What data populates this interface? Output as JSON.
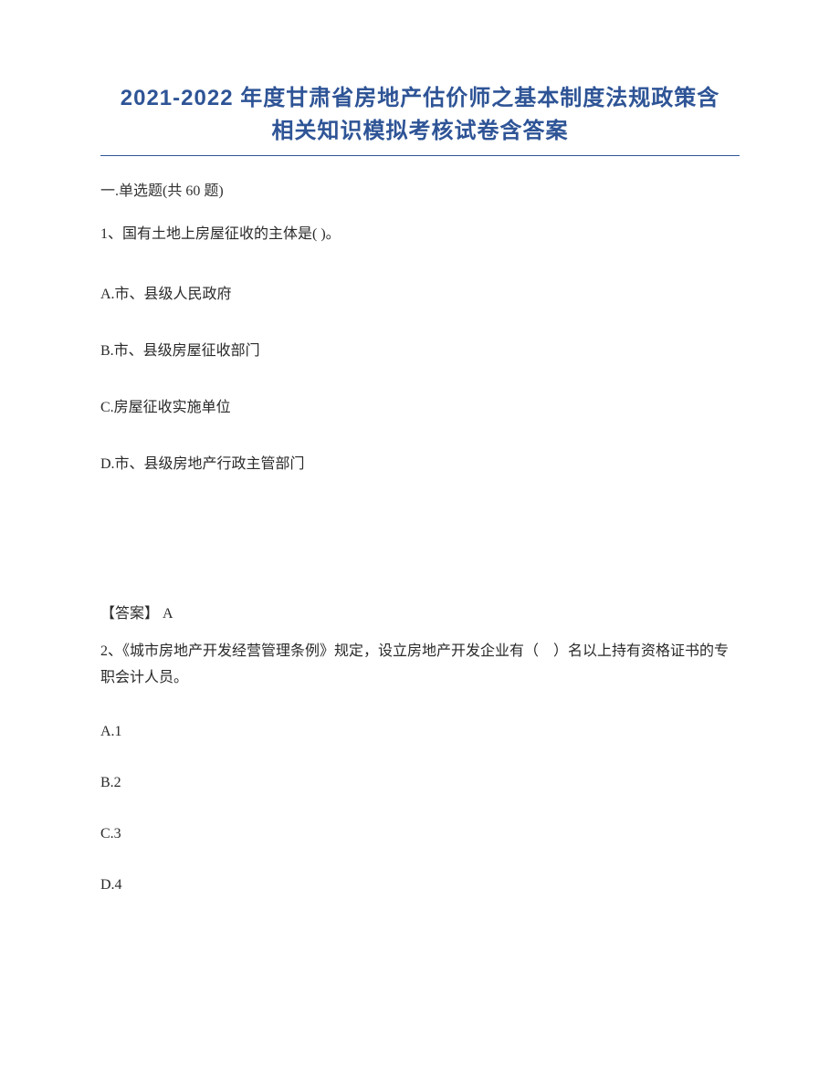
{
  "title": {
    "line1": "2021-2022 年度甘肃省房地产估价师之基本制度法规政策含",
    "line2": "相关知识模拟考核试卷含答案",
    "color": "#2e5496",
    "underline_color": "#2e5496",
    "fontsize": 24
  },
  "section_header": {
    "prefix": "一",
    "label": ".单选题(共 60 题)"
  },
  "question1": {
    "stem": "1、国有土地上房屋征收的主体是( )。",
    "options": {
      "A": "A.市、县级人民政府",
      "B": "B.市、县级房屋征收部门",
      "C": "C.房屋征收实施单位",
      "D": "D.市、县级房地产行政主管部门"
    },
    "answer_label": "【答案】",
    "answer_value": " A"
  },
  "question2": {
    "stem": "2、《城市房地产开发经营管理条例》规定，设立房地产开发企业有（　）名以上持有资格证书的专职会计人员。",
    "options": {
      "A": "A.1",
      "B": "B.2",
      "C": "C.3",
      "D": "D.4"
    }
  },
  "colors": {
    "text": "#2a2a2a",
    "background": "#ffffff"
  }
}
